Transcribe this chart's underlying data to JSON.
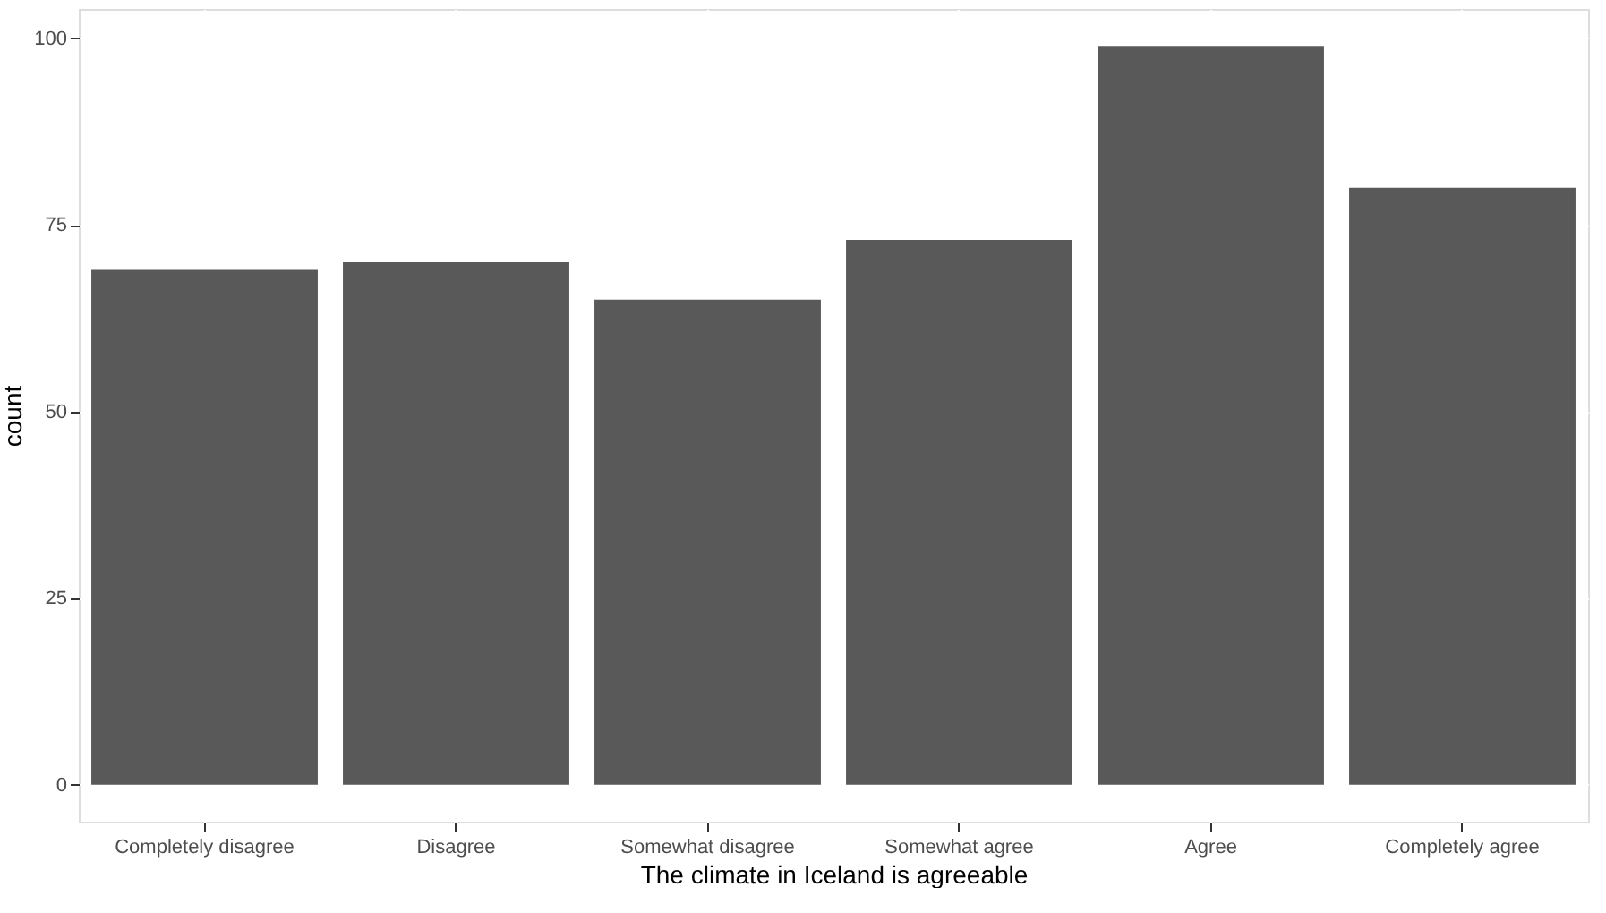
{
  "chart_data": {
    "type": "bar",
    "xlabel": "The climate in Iceland is agreeable",
    "ylabel": "count",
    "categories": [
      "Completely disagree",
      "Disagree",
      "Somewhat disagree",
      "Somewhat agree",
      "Agree",
      "Completely agree"
    ],
    "values": [
      69,
      70,
      65,
      73,
      99,
      80
    ],
    "color": "#595959",
    "ylim": [
      -4.95,
      103.95
    ],
    "yticks": [
      0,
      25,
      50,
      75,
      100
    ],
    "grid": true
  }
}
